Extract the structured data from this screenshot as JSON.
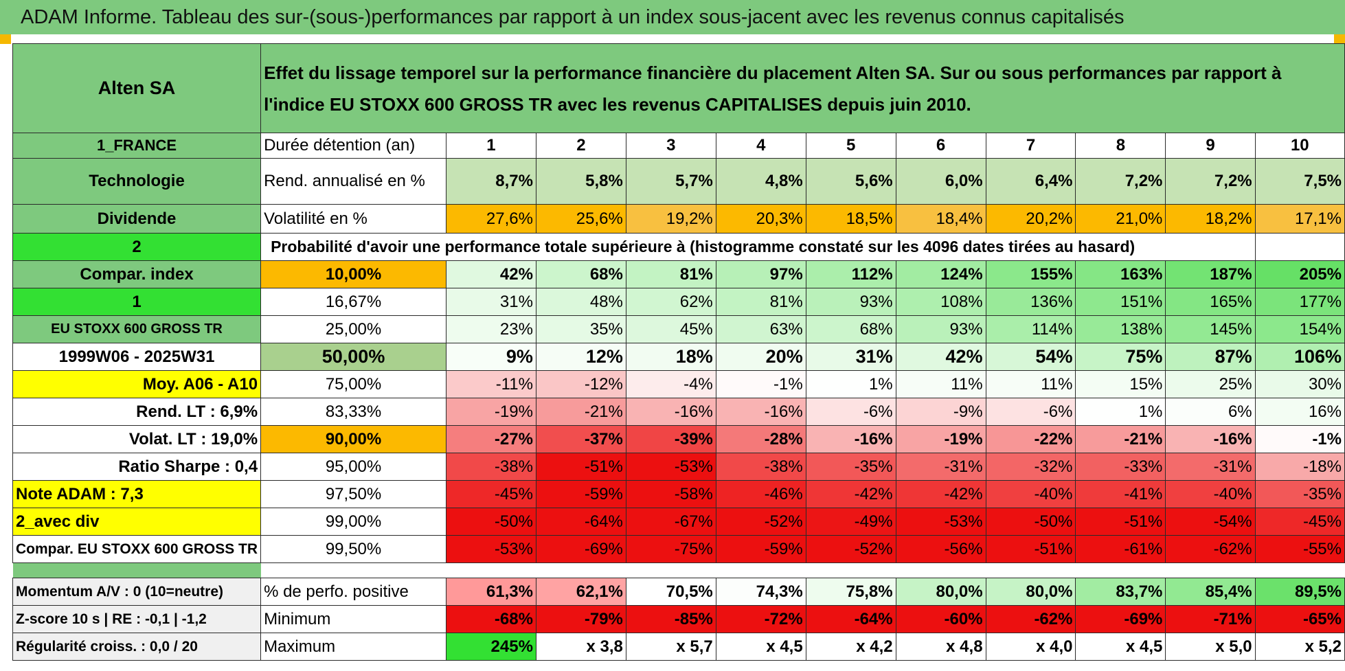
{
  "banner_title": "ADAM Informe. Tableau des sur-(sous-)performances par rapport à un index sous-jacent avec les revenus connus capitalisés",
  "left": {
    "company": "Alten SA",
    "country": "1_FRANCE",
    "sector": "Technologie",
    "dividend_label": "Dividende",
    "choice1": "2",
    "compar_index": "Compar. index",
    "choice2": "1",
    "index_name": "EU STOXX 600 GROSS TR",
    "period": "1999W06 - 2025W31",
    "moy": "Moy. A06 - A10",
    "rend_lt": "Rend. LT :    6,9%",
    "volat_lt": "Volat. LT :    19,0%",
    "sharpe": "Ratio Sharpe :    0,4",
    "note": "Note ADAM : 7,3",
    "avec_div": "2_avec div",
    "compar_full": "Compar. EU STOXX 600 GROSS TR",
    "momentum": "Momentum A/V : 0 (10=neutre)",
    "zscore": "Z-score 10 s | RE : -0,1 | -1,2",
    "regularite": "Régularité croiss. : 0,0 / 20"
  },
  "description": "Effet du lissage temporel sur la performance financière du placement Alten SA. Sur ou sous performances par rapport à l'indice EU STOXX 600 GROSS TR avec les revenus CAPITALISES depuis juin 2010.",
  "duration_label": "Durée détention (an)",
  "years": [
    "1",
    "2",
    "3",
    "4",
    "5",
    "6",
    "7",
    "8",
    "9",
    "10"
  ],
  "rend_label": "Rend. annualisé en %",
  "rend": [
    "8,7%",
    "5,8%",
    "5,7%",
    "4,8%",
    "5,6%",
    "6,0%",
    "6,4%",
    "7,2%",
    "7,2%",
    "7,5%"
  ],
  "vol_label": "Volatilité en %",
  "vol": [
    "27,6%",
    "25,6%",
    "19,2%",
    "20,3%",
    "18,5%",
    "18,4%",
    "20,2%",
    "21,0%",
    "18,2%",
    "17,1%"
  ],
  "proba_label": "Probabilité d'avoir une performance totale supérieure à (histogramme constaté sur les 4096 dates tirées au hasard)",
  "prob_rows": [
    {
      "p": "10,00%",
      "v": [
        "42%",
        "68%",
        "81%",
        "97%",
        "112%",
        "124%",
        "155%",
        "163%",
        "187%",
        "205%"
      ]
    },
    {
      "p": "16,67%",
      "v": [
        "31%",
        "48%",
        "62%",
        "81%",
        "93%",
        "108%",
        "136%",
        "151%",
        "165%",
        "177%"
      ]
    },
    {
      "p": "25,00%",
      "v": [
        "23%",
        "35%",
        "45%",
        "63%",
        "68%",
        "93%",
        "114%",
        "138%",
        "145%",
        "154%"
      ]
    },
    {
      "p": "50,00%",
      "v": [
        "9%",
        "12%",
        "18%",
        "20%",
        "31%",
        "42%",
        "54%",
        "75%",
        "87%",
        "106%"
      ]
    },
    {
      "p": "75,00%",
      "v": [
        "-11%",
        "-12%",
        "-4%",
        "-1%",
        "1%",
        "11%",
        "11%",
        "15%",
        "25%",
        "30%"
      ]
    },
    {
      "p": "83,33%",
      "v": [
        "-19%",
        "-21%",
        "-16%",
        "-16%",
        "-6%",
        "-9%",
        "-6%",
        "1%",
        "6%",
        "16%"
      ]
    },
    {
      "p": "90,00%",
      "v": [
        "-27%",
        "-37%",
        "-39%",
        "-28%",
        "-16%",
        "-19%",
        "-22%",
        "-21%",
        "-16%",
        "-1%"
      ]
    },
    {
      "p": "95,00%",
      "v": [
        "-38%",
        "-51%",
        "-53%",
        "-38%",
        "-35%",
        "-31%",
        "-32%",
        "-33%",
        "-31%",
        "-18%"
      ]
    },
    {
      "p": "97,50%",
      "v": [
        "-45%",
        "-59%",
        "-58%",
        "-46%",
        "-42%",
        "-42%",
        "-40%",
        "-41%",
        "-40%",
        "-35%"
      ]
    },
    {
      "p": "99,00%",
      "v": [
        "-50%",
        "-64%",
        "-67%",
        "-52%",
        "-49%",
        "-53%",
        "-50%",
        "-51%",
        "-54%",
        "-45%"
      ]
    },
    {
      "p": "99,50%",
      "v": [
        "-53%",
        "-69%",
        "-75%",
        "-59%",
        "-52%",
        "-56%",
        "-51%",
        "-61%",
        "-62%",
        "-55%"
      ]
    }
  ],
  "pos_label": "% de perfo. positive",
  "pos": [
    "61,3%",
    "62,1%",
    "70,5%",
    "74,3%",
    "75,8%",
    "80,0%",
    "80,0%",
    "83,7%",
    "85,4%",
    "89,5%"
  ],
  "min_label": "Minimum",
  "min": [
    "-68%",
    "-79%",
    "-85%",
    "-72%",
    "-64%",
    "-60%",
    "-62%",
    "-69%",
    "-71%",
    "-65%"
  ],
  "max_label": "Maximum",
  "max": [
    "245%",
    "x 3,8",
    "x 5,7",
    "x 4,5",
    "x 4,2",
    "x 4,8",
    "x 4,0",
    "x 4,5",
    "x 5,0",
    "x 5,2"
  ]
}
